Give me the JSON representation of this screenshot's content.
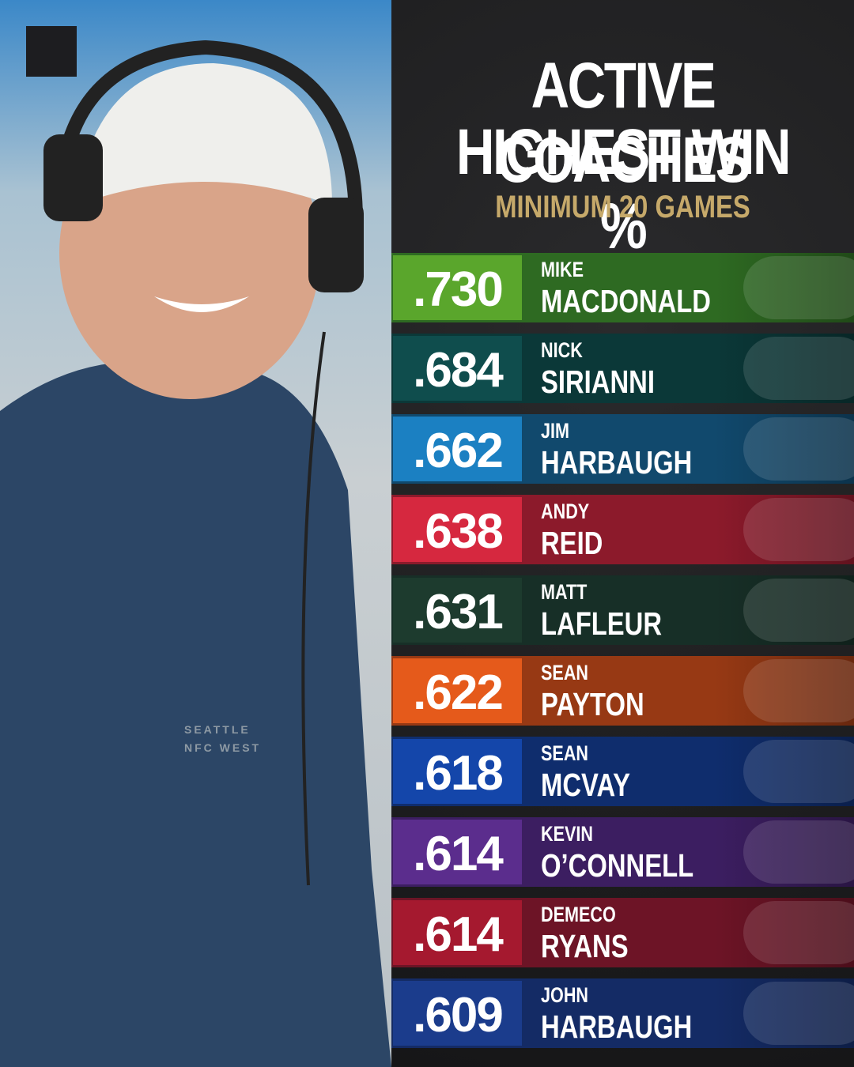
{
  "header": {
    "title_lines": [
      "ACTIVE COACHES",
      "HIGHEST WIN %"
    ],
    "subtitle": "MINIMUM 20 GAMES"
  },
  "photo": {
    "shirt_lines": [
      "SEATTLE",
      "NFC WEST"
    ]
  },
  "rows": [
    {
      "pct": ".730",
      "first": "MIKE",
      "last": "MACDONALD",
      "badge": "#5aa62c",
      "color": "#2e6a22"
    },
    {
      "pct": ".684",
      "first": "NICK",
      "last": "SIRIANNI",
      "badge": "#0f4d4d",
      "color": "#0b3838"
    },
    {
      "pct": ".662",
      "first": "JIM",
      "last": "HARBAUGH",
      "badge": "#1b80c2",
      "color": "#11496d"
    },
    {
      "pct": ".638",
      "first": "ANDY",
      "last": "REID",
      "badge": "#d6283f",
      "color": "#8c1a2b"
    },
    {
      "pct": ".631",
      "first": "MATT",
      "last": "LAFLEUR",
      "badge": "#1d3b2e",
      "color": "#172f27"
    },
    {
      "pct": ".622",
      "first": "SEAN",
      "last": "PAYTON",
      "badge": "#e55a1b",
      "color": "#973914"
    },
    {
      "pct": ".618",
      "first": "SEAN",
      "last": "MCVAY",
      "badge": "#1446aa",
      "color": "#0f2d6d"
    },
    {
      "pct": ".614",
      "first": "KEVIN",
      "last": "O’CONNELL",
      "badge": "#5b2d8d",
      "color": "#3c1e61"
    },
    {
      "pct": ".614",
      "first": "DEMECO",
      "last": "RYANS",
      "badge": "#a5192f",
      "color": "#6d1426"
    },
    {
      "pct": ".609",
      "first": "JOHN",
      "last": "HARBAUGH",
      "badge": "#1b3c8c",
      "color": "#142b65"
    }
  ]
}
